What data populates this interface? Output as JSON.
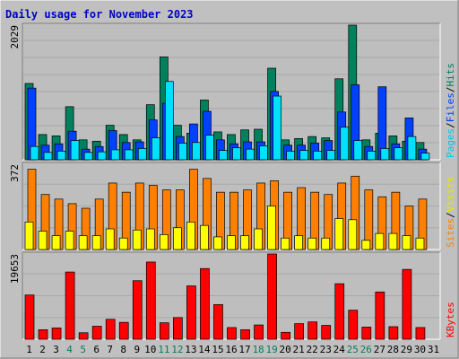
{
  "title": "Daily usage for November 2023",
  "colors": {
    "background": "#C0C0C0",
    "plot_background": "#BEBEBE",
    "title": "#0000C8",
    "hits": "#00805C",
    "files": "#0040FF",
    "pages": "#00E0FF",
    "visits": "#FFFF00",
    "sites": "#FF8000",
    "kbytes": "#FF0000",
    "weekend_day": "#00805C"
  },
  "chart_data": [
    {
      "type": "bar",
      "title": "",
      "ylabel_parts": [
        {
          "text": "Pages",
          "color": "#00C8E8"
        },
        {
          "text": "/",
          "color": "#000000"
        },
        {
          "text": "Files",
          "color": "#0040FF"
        },
        {
          "text": "/",
          "color": "#000000"
        },
        {
          "text": "Hits",
          "color": "#00805C"
        }
      ],
      "y_tick": "2029",
      "ylim": [
        0,
        2029
      ],
      "categories": [
        "1",
        "2",
        "3",
        "4",
        "5",
        "6",
        "7",
        "8",
        "9",
        "10",
        "11",
        "12",
        "13",
        "14",
        "15",
        "16",
        "17",
        "18",
        "19",
        "20",
        "21",
        "22",
        "23",
        "24",
        "25",
        "26",
        "27",
        "28",
        "29",
        "30",
        "31"
      ],
      "series": [
        {
          "name": "Hits",
          "color": "#00805C",
          "values": [
            1150,
            380,
            360,
            800,
            300,
            280,
            520,
            380,
            300,
            830,
            1550,
            520,
            400,
            900,
            420,
            380,
            450,
            460,
            1380,
            300,
            320,
            350,
            330,
            1220,
            2029,
            300,
            400,
            360,
            280,
            260,
            0
          ]
        },
        {
          "name": "Files",
          "color": "#0040FF",
          "values": [
            1080,
            220,
            240,
            430,
            160,
            200,
            440,
            260,
            270,
            600,
            850,
            350,
            540,
            730,
            300,
            240,
            270,
            270,
            1030,
            220,
            220,
            250,
            290,
            720,
            1130,
            200,
            1100,
            240,
            630,
            160,
            0
          ]
        },
        {
          "name": "Pages",
          "color": "#00E0FF",
          "values": [
            200,
            110,
            130,
            290,
            110,
            120,
            150,
            150,
            170,
            330,
            1180,
            250,
            260,
            370,
            140,
            180,
            160,
            210,
            960,
            130,
            140,
            130,
            140,
            490,
            290,
            130,
            170,
            180,
            350,
            100,
            0
          ]
        }
      ]
    },
    {
      "type": "bar",
      "title": "",
      "ylabel_parts": [
        {
          "text": "Sites",
          "color": "#FF8000"
        },
        {
          "text": "/",
          "color": "#000000"
        },
        {
          "text": "Visits",
          "color": "#E8E800"
        }
      ],
      "y_tick": "372",
      "ylim": [
        0,
        372
      ],
      "categories": [
        "1",
        "2",
        "3",
        "4",
        "5",
        "6",
        "7",
        "8",
        "9",
        "10",
        "11",
        "12",
        "13",
        "14",
        "15",
        "16",
        "17",
        "18",
        "19",
        "20",
        "21",
        "22",
        "23",
        "24",
        "25",
        "26",
        "27",
        "28",
        "29",
        "30",
        "31"
      ],
      "series": [
        {
          "name": "Sites",
          "color": "#FF8000",
          "values": [
            350,
            240,
            220,
            200,
            180,
            220,
            290,
            250,
            290,
            280,
            260,
            260,
            350,
            310,
            250,
            250,
            260,
            290,
            300,
            250,
            270,
            250,
            240,
            290,
            320,
            260,
            230,
            250,
            190,
            220,
            0
          ]
        },
        {
          "name": "Visits",
          "color": "#FFFF00",
          "values": [
            120,
            80,
            60,
            80,
            60,
            60,
            90,
            50,
            85,
            90,
            65,
            95,
            120,
            105,
            55,
            60,
            60,
            90,
            190,
            50,
            60,
            50,
            50,
            135,
            130,
            40,
            70,
            70,
            60,
            50,
            0
          ]
        }
      ]
    },
    {
      "type": "bar",
      "title": "",
      "ylabel_parts": [
        {
          "text": "KBytes",
          "color": "#FF0000"
        }
      ],
      "y_tick": "19653",
      "ylim": [
        0,
        19653
      ],
      "categories": [
        "1",
        "2",
        "3",
        "4",
        "5",
        "6",
        "7",
        "8",
        "9",
        "10",
        "11",
        "12",
        "13",
        "14",
        "15",
        "16",
        "17",
        "18",
        "19",
        "20",
        "21",
        "22",
        "23",
        "24",
        "25",
        "26",
        "27",
        "28",
        "29",
        "30",
        "31"
      ],
      "series": [
        {
          "name": "KBytes",
          "color": "#FF0000",
          "values": [
            10200,
            2200,
            2600,
            15500,
            1500,
            3000,
            4600,
            3900,
            13500,
            17800,
            3800,
            5000,
            12300,
            16300,
            8000,
            2700,
            2200,
            3300,
            19653,
            1600,
            3600,
            4000,
            3200,
            12800,
            6700,
            2800,
            10900,
            2900,
            16100,
            2700,
            0
          ]
        }
      ]
    }
  ],
  "x_axis": {
    "labels": [
      "1",
      "2",
      "3",
      "4",
      "5",
      "6",
      "7",
      "8",
      "9",
      "10",
      "11",
      "12",
      "13",
      "14",
      "15",
      "16",
      "17",
      "18",
      "19",
      "20",
      "21",
      "22",
      "23",
      "24",
      "25",
      "26",
      "27",
      "28",
      "29",
      "30",
      "31"
    ],
    "weekend_days": [
      "4",
      "5",
      "11",
      "12",
      "18",
      "19",
      "25",
      "26"
    ]
  }
}
